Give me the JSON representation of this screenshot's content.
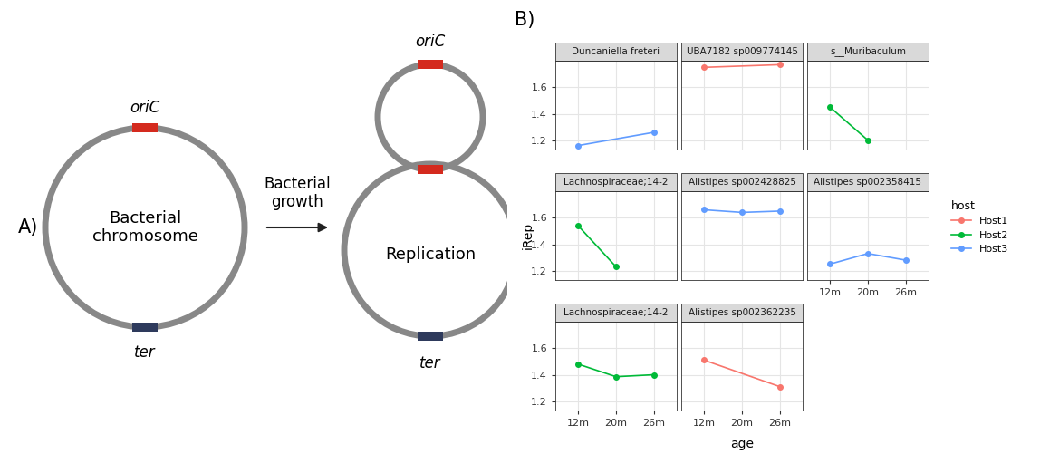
{
  "panel_labels": {
    "a": "A)",
    "b": "B)"
  },
  "diagram": {
    "left": {
      "label": "Bacterial\nchromosome",
      "origin": "oriC",
      "terminus": "ter"
    },
    "arrow_label": "Bacterial\ngrowth",
    "right": {
      "label": "Replication",
      "origin": "oriC",
      "terminus": "ter"
    }
  },
  "facet": {
    "x_label": "age",
    "y_label": "iRep",
    "legend_title": "host",
    "legend": "right",
    "legend_entries": [
      {
        "name": "Host1",
        "color": "#F8766D"
      },
      {
        "name": "Host2",
        "color": "#00BA38"
      },
      {
        "name": "Host3",
        "color": "#619CFF"
      }
    ]
  },
  "chart_data": [
    {
      "type": "line",
      "title": "Duncaniella freteri",
      "categories": [
        "12m",
        "20m",
        "26m"
      ],
      "ylim": [
        1.13,
        1.8
      ],
      "yticks": [
        1.2,
        1.4,
        1.6
      ],
      "grid": true,
      "tick_labels": "y",
      "series": [
        {
          "name": "Host3",
          "color": "#619CFF",
          "marker": "o",
          "line_style": "solid",
          "x": [
            "12m",
            "26m"
          ],
          "values": [
            1.16,
            1.26
          ]
        }
      ]
    },
    {
      "type": "line",
      "title": "UBA7182 sp009774145",
      "categories": [
        "12m",
        "20m",
        "26m"
      ],
      "ylim": [
        1.13,
        1.8
      ],
      "yticks": [
        1.2,
        1.4,
        1.6
      ],
      "grid": true,
      "tick_labels": false,
      "series": [
        {
          "name": "Host1",
          "color": "#F8766D",
          "marker": "o",
          "line_style": "solid",
          "x": [
            "12m",
            "26m"
          ],
          "values": [
            1.75,
            1.77
          ]
        }
      ]
    },
    {
      "type": "line",
      "title": "s__Muribaculum",
      "categories": [
        "12m",
        "20m",
        "26m"
      ],
      "ylim": [
        1.13,
        1.8
      ],
      "yticks": [
        1.2,
        1.4,
        1.6
      ],
      "grid": true,
      "tick_labels": false,
      "series": [
        {
          "name": "Host2",
          "color": "#00BA38",
          "marker": "o",
          "line_style": "solid",
          "x": [
            "12m",
            "20m"
          ],
          "values": [
            1.45,
            1.2
          ]
        }
      ]
    },
    {
      "type": "line",
      "title": "Lachnospiraceae;14-2",
      "categories": [
        "12m",
        "20m",
        "26m"
      ],
      "ylim": [
        1.13,
        1.8
      ],
      "yticks": [
        1.2,
        1.4,
        1.6
      ],
      "grid": true,
      "tick_labels": "y",
      "series": [
        {
          "name": "Host2",
          "color": "#00BA38",
          "marker": "o",
          "line_style": "solid",
          "x": [
            "12m",
            "20m"
          ],
          "values": [
            1.54,
            1.23
          ]
        }
      ]
    },
    {
      "type": "line",
      "title": "Alistipes sp002428825",
      "categories": [
        "12m",
        "20m",
        "26m"
      ],
      "ylim": [
        1.13,
        1.8
      ],
      "yticks": [
        1.2,
        1.4,
        1.6
      ],
      "grid": true,
      "tick_labels": false,
      "series": [
        {
          "name": "Host3",
          "color": "#619CFF",
          "marker": "o",
          "line_style": "solid",
          "x": [
            "12m",
            "20m",
            "26m"
          ],
          "values": [
            1.66,
            1.64,
            1.65
          ]
        }
      ]
    },
    {
      "type": "line",
      "title": "Alistipes sp002358415",
      "categories": [
        "12m",
        "20m",
        "26m"
      ],
      "ylim": [
        1.13,
        1.8
      ],
      "yticks": [
        1.2,
        1.4,
        1.6
      ],
      "grid": true,
      "tick_labels": "x",
      "series": [
        {
          "name": "Host3",
          "color": "#619CFF",
          "marker": "o",
          "line_style": "solid",
          "x": [
            "12m",
            "20m",
            "26m"
          ],
          "values": [
            1.25,
            1.33,
            1.28
          ]
        }
      ]
    },
    {
      "type": "line",
      "title": "Lachnospiraceae;14-2",
      "categories": [
        "12m",
        "20m",
        "26m"
      ],
      "ylim": [
        1.13,
        1.8
      ],
      "yticks": [
        1.2,
        1.4,
        1.6
      ],
      "grid": true,
      "tick_labels": true,
      "series": [
        {
          "name": "Host2",
          "color": "#00BA38",
          "marker": "o",
          "line_style": "solid",
          "x": [
            "12m",
            "20m",
            "26m"
          ],
          "values": [
            1.48,
            1.385,
            1.4
          ]
        }
      ]
    },
    {
      "type": "line",
      "title": "Alistipes sp002362235",
      "categories": [
        "12m",
        "20m",
        "26m"
      ],
      "ylim": [
        1.13,
        1.8
      ],
      "yticks": [
        1.2,
        1.4,
        1.6
      ],
      "grid": true,
      "tick_labels": "x",
      "series": [
        {
          "name": "Host1",
          "color": "#F8766D",
          "marker": "o",
          "line_style": "solid",
          "x": [
            "12m",
            "26m"
          ],
          "values": [
            1.51,
            1.31
          ]
        }
      ]
    }
  ]
}
